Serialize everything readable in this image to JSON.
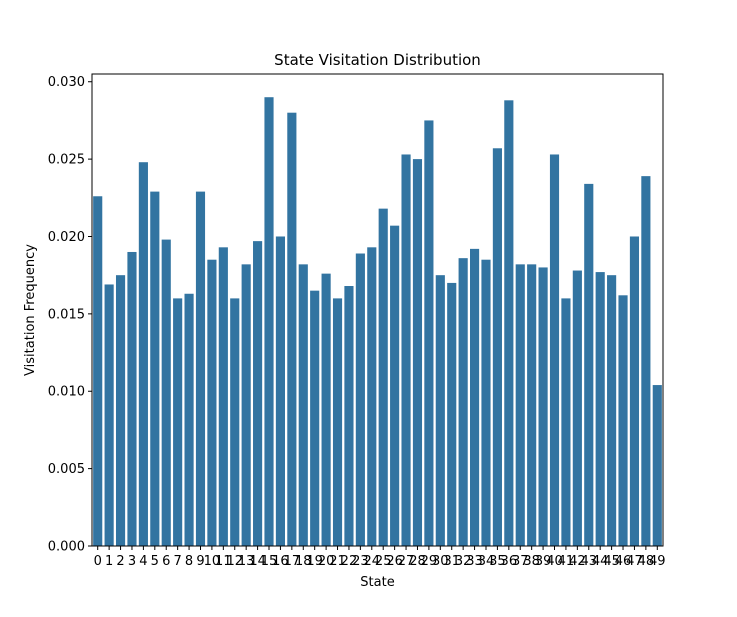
{
  "chart_data": {
    "type": "bar",
    "title": "State Visitation Distribution",
    "xlabel": "State",
    "ylabel": "Visitation Frequency",
    "ylim": [
      0,
      0.0305
    ],
    "yticks": [
      "0.000",
      "0.005",
      "0.010",
      "0.015",
      "0.020",
      "0.025",
      "0.030"
    ],
    "ytick_values": [
      0,
      0.005,
      0.01,
      0.015,
      0.02,
      0.025,
      0.03
    ],
    "grid": false,
    "bar_color": "#3274a1",
    "categories": [
      "0",
      "1",
      "2",
      "3",
      "4",
      "5",
      "6",
      "7",
      "8",
      "9",
      "10",
      "11",
      "12",
      "13",
      "14",
      "15",
      "16",
      "17",
      "18",
      "19",
      "20",
      "21",
      "22",
      "23",
      "24",
      "25",
      "26",
      "27",
      "28",
      "29",
      "30",
      "31",
      "32",
      "33",
      "34",
      "35",
      "36",
      "37",
      "38",
      "39",
      "40",
      "41",
      "42",
      "43",
      "44",
      "45",
      "46",
      "47",
      "48",
      "49"
    ],
    "values": [
      0.0226,
      0.0169,
      0.0175,
      0.019,
      0.0248,
      0.0229,
      0.0198,
      0.016,
      0.0163,
      0.0229,
      0.0185,
      0.0193,
      0.016,
      0.0182,
      0.0197,
      0.029,
      0.02,
      0.028,
      0.0182,
      0.0165,
      0.0176,
      0.016,
      0.0168,
      0.0189,
      0.0193,
      0.0218,
      0.0207,
      0.0253,
      0.025,
      0.0275,
      0.0175,
      0.017,
      0.0186,
      0.0192,
      0.0185,
      0.0257,
      0.0288,
      0.0182,
      0.0182,
      0.018,
      0.0253,
      0.016,
      0.0178,
      0.0234,
      0.0177,
      0.0175,
      0.0162,
      0.02,
      0.0239,
      0.0104
    ]
  }
}
